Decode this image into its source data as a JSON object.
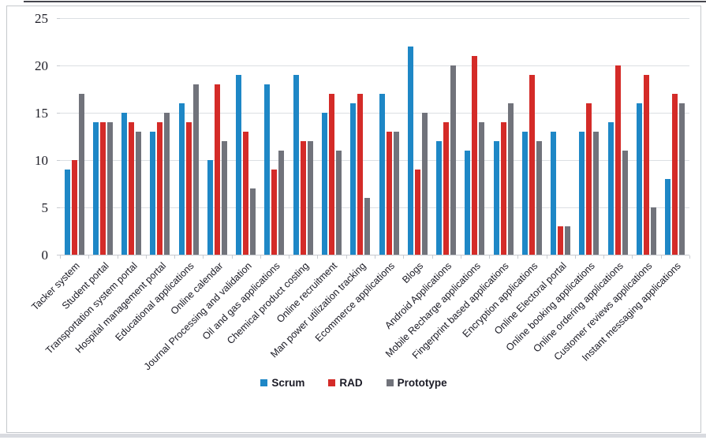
{
  "chart_data": {
    "type": "bar",
    "title": "",
    "xlabel": "",
    "ylabel": "",
    "ylim": [
      0,
      25
    ],
    "yticks": [
      0,
      5,
      10,
      15,
      20,
      25
    ],
    "grid": true,
    "legend_position": "bottom",
    "categories": [
      "Tacker system",
      "Student portal",
      "Transportation system portal",
      "Hospital management portal",
      "Educational applications",
      "Online calendar",
      "Journal Processing and validation",
      "Oil and gas applications",
      "Chemical product costing",
      "Online recruitment",
      "Man power utilization tracking",
      "Ecommerce applications",
      "Blogs",
      "Android Applications",
      "Mobile Recharge applications",
      "Fingerprint based applications",
      "Encryption applications",
      "Online Electoral portal",
      "Online booking applications",
      "Online ordering applications",
      "Customer reviews applications",
      "Instant messaging applications"
    ],
    "series": [
      {
        "name": "Scrum",
        "color": "#1e87c6",
        "values": [
          9,
          14,
          15,
          13,
          16,
          10,
          19,
          18,
          19,
          15,
          16,
          17,
          22,
          12,
          11,
          12,
          13,
          13,
          13,
          14,
          16,
          8
        ]
      },
      {
        "name": "RAD",
        "color": "#d42b28",
        "values": [
          10,
          14,
          14,
          14,
          14,
          18,
          13,
          9,
          12,
          17,
          17,
          13,
          9,
          14,
          21,
          14,
          19,
          3,
          16,
          20,
          19,
          17
        ]
      },
      {
        "name": "Prototype",
        "color": "#71737b",
        "values": [
          17,
          14,
          13,
          15,
          18,
          12,
          7,
          11,
          12,
          11,
          6,
          13,
          15,
          20,
          14,
          16,
          12,
          3,
          13,
          11,
          5,
          16
        ]
      }
    ],
    "colors": {
      "gridline": "#dcdfe3",
      "axis_text": "#1b1b24",
      "frame_border": "#c5c8cc"
    }
  }
}
